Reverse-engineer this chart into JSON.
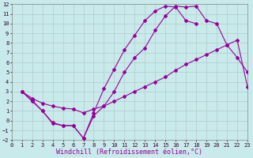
{
  "xlabel": "Windchill (Refroidissement éolien,°C)",
  "xlim": [
    0,
    23
  ],
  "ylim": [
    -2,
    12
  ],
  "xticks": [
    0,
    1,
    2,
    3,
    4,
    5,
    6,
    7,
    8,
    9,
    10,
    11,
    12,
    13,
    14,
    15,
    16,
    17,
    18,
    19,
    20,
    21,
    22,
    23
  ],
  "yticks": [
    -2,
    -1,
    0,
    1,
    2,
    3,
    4,
    5,
    6,
    7,
    8,
    9,
    10,
    11,
    12
  ],
  "bg_color": "#c8eaea",
  "grid_color": "#b0cccc",
  "line_color": "#990099",
  "line1_x": [
    1,
    2,
    3,
    4,
    5,
    6,
    7,
    8,
    9,
    10,
    11,
    12,
    13,
    14,
    15,
    16,
    17,
    18
  ],
  "line1_y": [
    3,
    2,
    1,
    -0.2,
    -0.5,
    -0.5,
    -1.8,
    0.8,
    3.3,
    5.3,
    7.3,
    8.8,
    10.3,
    11.3,
    11.8,
    11.7,
    10.3,
    10.0
  ],
  "line2_x": [
    1,
    2,
    3,
    4,
    5,
    6,
    7,
    8,
    9,
    10,
    11,
    12,
    13,
    14,
    15,
    16,
    17,
    18,
    19,
    20,
    21,
    22,
    23
  ],
  "line2_y": [
    3,
    2.1,
    1.0,
    -0.3,
    -0.5,
    -0.5,
    -1.8,
    0.5,
    1.5,
    3.0,
    5.0,
    6.5,
    7.5,
    9.3,
    10.8,
    11.8,
    11.7,
    11.8,
    10.3,
    10.0,
    7.8,
    6.5,
    5.0
  ],
  "line3_x": [
    1,
    2,
    3,
    4,
    5,
    6,
    7,
    8,
    9,
    10,
    11,
    12,
    13,
    14,
    15,
    16,
    17,
    18,
    19,
    20,
    21,
    22,
    23
  ],
  "line3_y": [
    3,
    2.3,
    1.8,
    1.5,
    1.3,
    1.2,
    0.8,
    1.2,
    1.5,
    2.0,
    2.5,
    3.0,
    3.5,
    4.0,
    4.5,
    5.2,
    5.8,
    6.3,
    6.8,
    7.3,
    7.8,
    8.3,
    3.5
  ],
  "marker": "D",
  "markersize": 2.0,
  "linewidth": 0.8,
  "fontsize_ticks": 5,
  "fontsize_label": 6
}
